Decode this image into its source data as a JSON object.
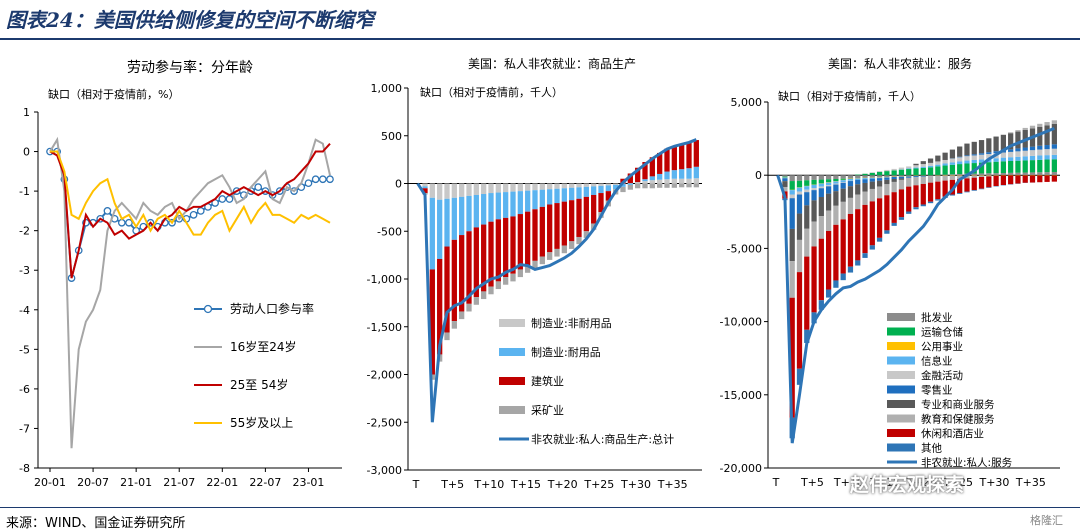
{
  "figure_title": "图表24：美国供给侧修复的空间不断缩窄",
  "source_text": "来源：WIND、国金证券研究所",
  "watermark": "赵伟宏观探索",
  "watermark_badge": "格隆汇",
  "colors": {
    "navy": "#1c3a6e",
    "blue": "#2e75b6",
    "gray": "#a6a6a6",
    "red": "#c00000",
    "yellow": "#ffc000",
    "lightblue": "#5bb4f0",
    "lightgray": "#c8c8c8",
    "darkgray": "#595959",
    "green": "#00b050"
  },
  "chart_data": [
    {
      "type": "line",
      "title": "劳动参与率：分年龄",
      "ylabel": "缺口（相对于疫情前，%）",
      "ylim": [
        -8,
        1
      ],
      "yticks": [
        1,
        0,
        -1,
        -2,
        -3,
        -4,
        -5,
        -6,
        -7,
        -8
      ],
      "xticks": [
        "20-01",
        "20-07",
        "21-01",
        "21-07",
        "22-01",
        "22-07",
        "23-01"
      ],
      "x_months": 40,
      "series": [
        {
          "name": "劳动人口参与率",
          "color": "#2e75b6",
          "marker": "circle",
          "values": [
            0,
            0,
            -0.7,
            -3.2,
            -2.5,
            -1.8,
            -1.8,
            -1.7,
            -1.5,
            -1.7,
            -1.8,
            -1.8,
            -2.0,
            -1.9,
            -1.8,
            -1.9,
            -1.8,
            -1.8,
            -1.7,
            -1.7,
            -1.6,
            -1.5,
            -1.4,
            -1.3,
            -1.2,
            -1.2,
            -1.0,
            -1.1,
            -1.0,
            -0.9,
            -1.0,
            -1.1,
            -1.0,
            -0.9,
            -1.0,
            -0.9,
            -0.8,
            -0.7,
            -0.7,
            -0.7
          ]
        },
        {
          "name": "16岁至24岁",
          "color": "#a6a6a6",
          "values": [
            0,
            0.3,
            -1.0,
            -7.5,
            -5.0,
            -4.3,
            -4.0,
            -3.5,
            -2.0,
            -1.5,
            -1.3,
            -1.5,
            -1.7,
            -1.3,
            -1.5,
            -1.6,
            -1.4,
            -1.3,
            -1.7,
            -1.5,
            -1.2,
            -1.0,
            -0.8,
            -0.7,
            -0.6,
            -0.9,
            -1.3,
            -1.2,
            -0.9,
            -0.7,
            -0.5,
            -1.2,
            -1.3,
            -0.9,
            -1.0,
            -0.8,
            -0.3,
            0.3,
            0.2,
            -0.6
          ]
        },
        {
          "name": "25至 54岁",
          "color": "#c00000",
          "values": [
            0,
            -0.1,
            -0.6,
            -3.2,
            -2.5,
            -1.6,
            -1.9,
            -1.7,
            -1.8,
            -2.1,
            -2.0,
            -2.2,
            -2.1,
            -2.0,
            -1.8,
            -2.0,
            -1.7,
            -1.6,
            -1.4,
            -1.5,
            -1.4,
            -1.4,
            -1.3,
            -1.2,
            -1.0,
            -1.1,
            -1.0,
            -0.9,
            -1.0,
            -1.1,
            -1.0,
            -1.1,
            -1.0,
            -0.8,
            -0.7,
            -0.5,
            -0.3,
            0.0,
            0.0,
            0.2
          ]
        },
        {
          "name": "55岁及以上",
          "color": "#ffc000",
          "values": [
            0,
            0,
            -0.5,
            -1.6,
            -1.7,
            -1.3,
            -1.0,
            -0.8,
            -0.7,
            -1.3,
            -1.7,
            -1.6,
            -1.9,
            -1.6,
            -2.0,
            -1.7,
            -1.6,
            -1.8,
            -1.5,
            -1.8,
            -2.1,
            -2.1,
            -1.8,
            -1.6,
            -1.5,
            -2.0,
            -1.7,
            -1.4,
            -1.8,
            -1.5,
            -1.3,
            -1.6,
            -1.6,
            -1.7,
            -1.8,
            -1.6,
            -1.7,
            -1.6,
            -1.7,
            -1.8
          ]
        }
      ]
    },
    {
      "type": "bar",
      "stacked": true,
      "title": "美国：私人非农就业：商品生产",
      "ylabel": "缺口（相对于疫情前，千人）",
      "ylim": [
        -3000,
        1000
      ],
      "yticks": [
        "1,000",
        "500",
        "0",
        "-500",
        "-1,000",
        "-1,500",
        "-2,000",
        "-2,500",
        "-3,000"
      ],
      "xticks": [
        "T",
        "T+5",
        "T+10",
        "T+15",
        "T+20",
        "T+25",
        "T+30",
        "T+35"
      ],
      "series": [
        {
          "name": "制造业:非耐用品",
          "color": "#c8c8c8",
          "values": [
            0,
            -30,
            -150,
            -170,
            -160,
            -150,
            -140,
            -130,
            -120,
            -110,
            -100,
            -95,
            -90,
            -85,
            -80,
            -75,
            -70,
            -65,
            -60,
            -55,
            -50,
            -45,
            -40,
            -35,
            -30,
            -25,
            -20,
            -15,
            -5,
            5,
            15,
            25,
            35,
            40,
            45,
            50,
            50,
            50,
            55
          ]
        },
        {
          "name": "制造业:耐用品",
          "color": "#5bb4f0",
          "values": [
            0,
            -20,
            -750,
            -620,
            -500,
            -440,
            -400,
            -370,
            -340,
            -320,
            -300,
            -280,
            -270,
            -260,
            -240,
            -220,
            -200,
            -180,
            -160,
            -150,
            -140,
            -130,
            -120,
            -105,
            -90,
            -75,
            -60,
            -45,
            -30,
            -15,
            0,
            20,
            40,
            60,
            80,
            90,
            100,
            110,
            120
          ]
        },
        {
          "name": "建筑业",
          "color": "#c00000",
          "values": [
            0,
            -50,
            -1100,
            -1000,
            -900,
            -850,
            -800,
            -760,
            -730,
            -700,
            -680,
            -650,
            -620,
            -600,
            -580,
            -560,
            -540,
            -520,
            -500,
            -480,
            -460,
            -430,
            -400,
            -360,
            -300,
            -200,
            -100,
            0,
            50,
            100,
            150,
            180,
            200,
            220,
            240,
            250,
            260,
            270,
            280
          ]
        },
        {
          "name": "采矿业",
          "color": "#a6a6a6",
          "values": [
            0,
            -15,
            -55,
            -75,
            -80,
            -80,
            -80,
            -80,
            -80,
            -80,
            -80,
            -80,
            -80,
            -80,
            -80,
            -80,
            -80,
            -80,
            -80,
            -80,
            -80,
            -80,
            -75,
            -70,
            -65,
            -60,
            -60,
            -55,
            -55,
            -50,
            -50,
            -50,
            -50,
            -45,
            -45,
            -45,
            -40,
            -40,
            -40
          ]
        },
        {
          "name": "非农就业:私人:商品生产:总计",
          "color": "#2e75b6",
          "kind": "line",
          "values": [
            0,
            -120,
            -2500,
            -1700,
            -1350,
            -1280,
            -1250,
            -1180,
            -1100,
            -1050,
            -1000,
            -980,
            -930,
            -900,
            -850,
            -860,
            -900,
            -880,
            -860,
            -820,
            -780,
            -730,
            -660,
            -580,
            -480,
            -340,
            -200,
            -80,
            10,
            80,
            140,
            200,
            260,
            310,
            360,
            390,
            410,
            430,
            460
          ]
        }
      ]
    },
    {
      "type": "bar",
      "stacked": true,
      "title": "美国：私人非农就业：服务",
      "ylabel": "缺口（相对于疫情前，千人）",
      "ylim": [
        -20000,
        5000
      ],
      "yticks": [
        "5,000",
        "0",
        "-5,000",
        "-10,000",
        "-15,000",
        "-20,000"
      ],
      "xticks": [
        "T",
        "T+5",
        "T+10",
        "T+15",
        "T+20",
        "T+25",
        "T+30",
        "T+35"
      ],
      "series": [
        {
          "name": "批发业",
          "color": "#8c8c8c",
          "values": [
            0,
            -100,
            -400,
            -380,
            -350,
            -320,
            -300,
            -280,
            -260,
            -240,
            -220,
            -200,
            -180,
            -160,
            -140,
            -120,
            -100,
            -80,
            -60,
            -40,
            -20,
            0,
            20,
            40,
            60,
            80,
            100,
            110,
            120,
            130,
            140,
            150,
            160,
            170,
            180,
            190,
            200,
            210,
            220
          ]
        },
        {
          "name": "运输仓储",
          "color": "#00b050",
          "values": [
            0,
            -50,
            -600,
            -450,
            -380,
            -320,
            -260,
            -200,
            -140,
            -80,
            -20,
            40,
            100,
            160,
            220,
            280,
            330,
            380,
            420,
            460,
            500,
            540,
            580,
            620,
            650,
            680,
            700,
            720,
            740,
            760,
            780,
            800,
            810,
            820,
            830,
            840,
            850,
            860,
            870
          ]
        },
        {
          "name": "公用事业",
          "color": "#ffc000",
          "values": [
            0,
            -5,
            -20,
            -20,
            -20,
            -20,
            -20,
            -20,
            -20,
            -20,
            -20,
            -20,
            -20,
            -20,
            -20,
            -20,
            -20,
            -20,
            -20,
            -20,
            -20,
            -20,
            -20,
            -20,
            -20,
            -20,
            -20,
            -20,
            -20,
            -20,
            -20,
            -20,
            -20,
            -20,
            -20,
            -20,
            -20,
            -20,
            -20
          ]
        },
        {
          "name": "信息业",
          "color": "#5bb4f0",
          "values": [
            0,
            -30,
            -300,
            -270,
            -240,
            -220,
            -200,
            -180,
            -160,
            -140,
            -120,
            -100,
            -80,
            -60,
            -40,
            -20,
            0,
            20,
            40,
            60,
            80,
            100,
            120,
            140,
            160,
            180,
            200,
            210,
            220,
            230,
            240,
            250,
            260,
            270,
            280,
            290,
            300,
            300,
            300
          ]
        },
        {
          "name": "金融活动",
          "color": "#c8c8c8",
          "values": [
            0,
            -20,
            -250,
            -200,
            -170,
            -140,
            -110,
            -80,
            -60,
            -40,
            -20,
            0,
            20,
            40,
            60,
            80,
            100,
            120,
            140,
            160,
            180,
            200,
            220,
            240,
            260,
            280,
            300,
            310,
            320,
            330,
            340,
            350,
            360,
            370,
            380,
            390,
            400,
            410,
            420
          ]
        },
        {
          "name": "零售业",
          "color": "#1f6fbf",
          "values": [
            0,
            -200,
            -2100,
            -1300,
            -900,
            -700,
            -600,
            -500,
            -450,
            -400,
            -350,
            -300,
            -250,
            -200,
            -180,
            -160,
            -140,
            -120,
            -100,
            -80,
            -60,
            -40,
            -20,
            0,
            20,
            40,
            60,
            80,
            100,
            120,
            140,
            160,
            180,
            200,
            220,
            240,
            260,
            280,
            300
          ]
        },
        {
          "name": "专业和商业服务",
          "color": "#595959",
          "values": [
            0,
            -400,
            -2200,
            -1800,
            -1600,
            -1450,
            -1300,
            -1150,
            -1000,
            -900,
            -800,
            -700,
            -600,
            -500,
            -400,
            -300,
            -200,
            -100,
            0,
            100,
            200,
            300,
            400,
            500,
            600,
            700,
            800,
            850,
            900,
            950,
            1000,
            1050,
            1100,
            1150,
            1200,
            1250,
            1300,
            1350,
            1400
          ]
        },
        {
          "name": "教育和保健服务",
          "color": "#b0b0b0",
          "values": [
            0,
            -300,
            -2500,
            -2200,
            -1900,
            -1700,
            -1550,
            -1400,
            -1300,
            -1200,
            -1100,
            -1000,
            -900,
            -850,
            -800,
            -750,
            -700,
            -650,
            -600,
            -550,
            -500,
            -450,
            -400,
            -350,
            -300,
            -250,
            -200,
            -150,
            -100,
            -60,
            -20,
            20,
            60,
            100,
            140,
            180,
            200,
            220,
            240
          ]
        },
        {
          "name": "休闲和酒店业",
          "color": "#c00000",
          "values": [
            0,
            -500,
            -8200,
            -6600,
            -5000,
            -4500,
            -4200,
            -4000,
            -3800,
            -3700,
            -3600,
            -3500,
            -3300,
            -3000,
            -2700,
            -2400,
            -2100,
            -1900,
            -1700,
            -1500,
            -1400,
            -1300,
            -1200,
            -1100,
            -1000,
            -950,
            -900,
            -850,
            -800,
            -750,
            -700,
            -650,
            -600,
            -550,
            -500,
            -480,
            -460,
            -440,
            -420
          ]
        },
        {
          "name": "其他",
          "color": "#2e75b6",
          "values": [
            0,
            -100,
            -1400,
            -1100,
            -900,
            -750,
            -650,
            -550,
            -500,
            -450,
            -400,
            -350,
            -320,
            -290,
            -260,
            -230,
            -200,
            -180,
            -160,
            -140,
            -120,
            -100,
            -90,
            -80,
            -70,
            -60,
            -50,
            -45,
            -40,
            -35,
            -30,
            -25,
            -20,
            -15,
            -10,
            -5,
            0,
            0,
            0
          ]
        },
        {
          "name": "非农就业:私人:服务",
          "color": "#2e75b6",
          "kind": "line",
          "values": [
            0,
            -1500,
            -18300,
            -15000,
            -11500,
            -10000,
            -9200,
            -8600,
            -8100,
            -7700,
            -7600,
            -7300,
            -7100,
            -6800,
            -6500,
            -6100,
            -5600,
            -5100,
            -4500,
            -4000,
            -3500,
            -2800,
            -2000,
            -1500,
            -1000,
            -300,
            0,
            300,
            700,
            1100,
            1400,
            1700,
            2000,
            2200,
            2400,
            2600,
            2800,
            3000,
            3200
          ]
        }
      ]
    }
  ]
}
